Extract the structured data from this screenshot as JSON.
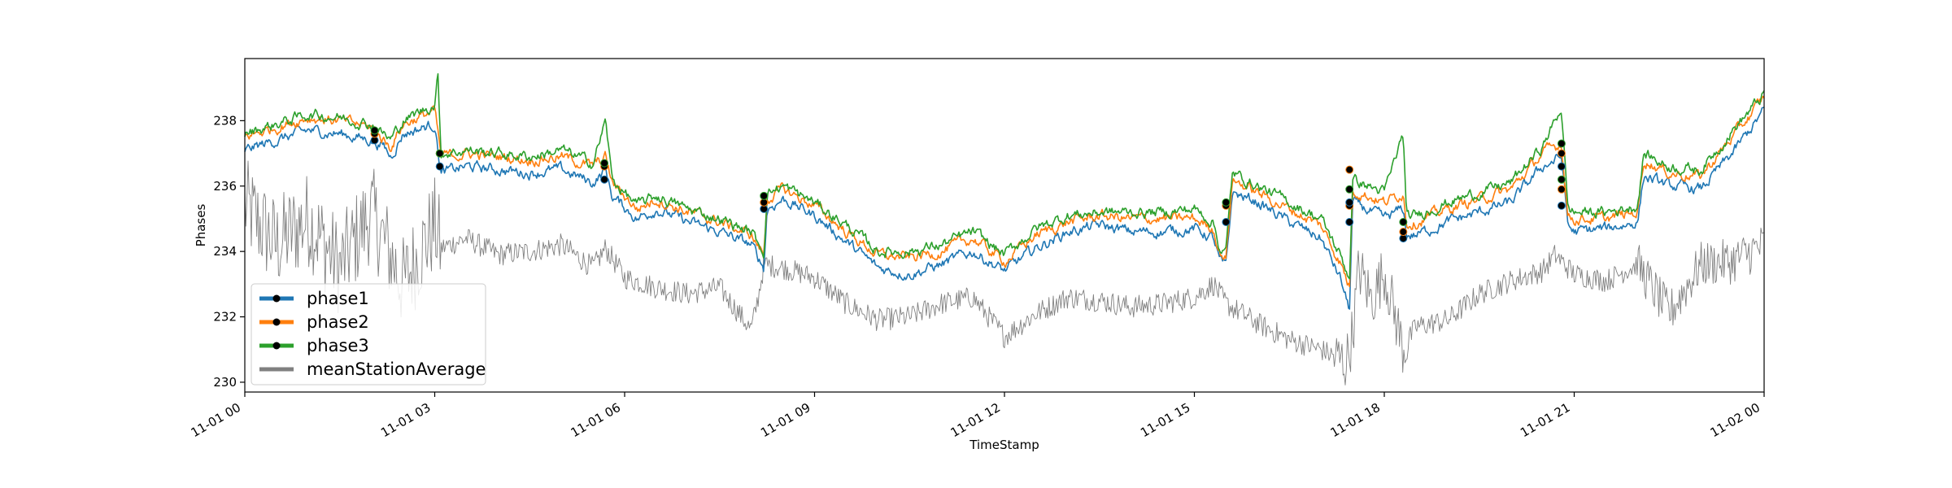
{
  "chart_data": {
    "type": "line",
    "title": "",
    "xlabel": "TimeStamp",
    "ylabel": "Phases",
    "ylim": [
      229.7,
      239.9
    ],
    "xlim_hours": [
      0,
      24
    ],
    "x_ticks": [
      {
        "label": "11-01 00",
        "hour": 0
      },
      {
        "label": "11-01 03",
        "hour": 3
      },
      {
        "label": "11-01 06",
        "hour": 6
      },
      {
        "label": "11-01 09",
        "hour": 9
      },
      {
        "label": "11-01 12",
        "hour": 12
      },
      {
        "label": "11-01 15",
        "hour": 15
      },
      {
        "label": "11-01 18",
        "hour": 18
      },
      {
        "label": "11-01 21",
        "hour": 21
      },
      {
        "label": "11-02 00",
        "hour": 24
      }
    ],
    "y_ticks": [
      230,
      232,
      234,
      236,
      238
    ],
    "grid": false,
    "legend_position": "lower-left",
    "series": [
      {
        "name": "phase1",
        "color": "#1f77b4",
        "points": [
          [
            0,
            237.1
          ],
          [
            0.5,
            237.4
          ],
          [
            1,
            237.7
          ],
          [
            1.5,
            237.6
          ],
          [
            2,
            237.4
          ],
          [
            2.2,
            237.2
          ],
          [
            2.3,
            236.9
          ],
          [
            2.5,
            237.6
          ],
          [
            3,
            237.9
          ],
          [
            3.1,
            236.4
          ],
          [
            3.5,
            236.6
          ],
          [
            4,
            236.5
          ],
          [
            4.5,
            236.4
          ],
          [
            5,
            236.5
          ],
          [
            5.5,
            236.1
          ],
          [
            5.7,
            236.5
          ],
          [
            5.8,
            235.7
          ],
          [
            6.2,
            235.0
          ],
          [
            6.5,
            235.3
          ],
          [
            7,
            234.9
          ],
          [
            7.5,
            234.6
          ],
          [
            8,
            234.2
          ],
          [
            8.2,
            233.5
          ],
          [
            8.25,
            235.3
          ],
          [
            8.5,
            235.6
          ],
          [
            9,
            235.1
          ],
          [
            9.5,
            234.3
          ],
          [
            10,
            233.5
          ],
          [
            10.5,
            233.3
          ],
          [
            11,
            233.6
          ],
          [
            11.5,
            234.0
          ],
          [
            12,
            233.4
          ],
          [
            12.5,
            234.1
          ],
          [
            13,
            234.6
          ],
          [
            13.5,
            234.8
          ],
          [
            14,
            234.6
          ],
          [
            14.5,
            234.6
          ],
          [
            15,
            234.7
          ],
          [
            15.3,
            234.4
          ],
          [
            15.4,
            233.7
          ],
          [
            15.5,
            233.5
          ],
          [
            15.6,
            235.8
          ],
          [
            16,
            235.5
          ],
          [
            16.5,
            234.9
          ],
          [
            17,
            234.4
          ],
          [
            17.3,
            233.2
          ],
          [
            17.45,
            232.2
          ],
          [
            17.5,
            235.5
          ],
          [
            18,
            235.0
          ],
          [
            18.3,
            235.3
          ],
          [
            18.35,
            234.5
          ],
          [
            18.5,
            234.5
          ],
          [
            19,
            234.9
          ],
          [
            19.5,
            235.2
          ],
          [
            20,
            235.5
          ],
          [
            20.5,
            236.6
          ],
          [
            20.8,
            236.9
          ],
          [
            20.9,
            234.8
          ],
          [
            21,
            234.6
          ],
          [
            21.5,
            234.7
          ],
          [
            22,
            234.9
          ],
          [
            22.1,
            236.3
          ],
          [
            22.5,
            236.0
          ],
          [
            23,
            235.9
          ],
          [
            23.5,
            237.0
          ],
          [
            24,
            238.3
          ]
        ]
      },
      {
        "name": "phase2",
        "color": "#ff7f0e",
        "points": [
          [
            0,
            237.5
          ],
          [
            0.5,
            237.8
          ],
          [
            1,
            238.1
          ],
          [
            1.5,
            238.0
          ],
          [
            2,
            237.8
          ],
          [
            2.2,
            237.4
          ],
          [
            2.3,
            237.2
          ],
          [
            2.5,
            237.9
          ],
          [
            3,
            238.3
          ],
          [
            3.1,
            236.9
          ],
          [
            3.5,
            237.0
          ],
          [
            4,
            236.9
          ],
          [
            4.5,
            236.8
          ],
          [
            5,
            236.9
          ],
          [
            5.5,
            236.6
          ],
          [
            5.7,
            236.9
          ],
          [
            5.8,
            236.1
          ],
          [
            6.2,
            235.3
          ],
          [
            6.5,
            235.6
          ],
          [
            7,
            235.2
          ],
          [
            7.5,
            234.9
          ],
          [
            8,
            234.5
          ],
          [
            8.2,
            233.9
          ],
          [
            8.25,
            235.6
          ],
          [
            8.5,
            235.9
          ],
          [
            9,
            235.4
          ],
          [
            9.5,
            234.6
          ],
          [
            10,
            233.9
          ],
          [
            10.5,
            233.8
          ],
          [
            11,
            234.0
          ],
          [
            11.5,
            234.4
          ],
          [
            12,
            233.7
          ],
          [
            12.5,
            234.5
          ],
          [
            13,
            234.9
          ],
          [
            13.5,
            235.1
          ],
          [
            14,
            235.0
          ],
          [
            14.5,
            235.0
          ],
          [
            15,
            235.0
          ],
          [
            15.3,
            234.7
          ],
          [
            15.4,
            234.0
          ],
          [
            15.5,
            233.8
          ],
          [
            15.6,
            236.2
          ],
          [
            16,
            235.8
          ],
          [
            16.5,
            235.3
          ],
          [
            17,
            234.8
          ],
          [
            17.3,
            233.7
          ],
          [
            17.45,
            232.9
          ],
          [
            17.5,
            235.9
          ],
          [
            18,
            235.5
          ],
          [
            18.3,
            235.8
          ],
          [
            18.35,
            234.9
          ],
          [
            18.5,
            234.9
          ],
          [
            19,
            235.3
          ],
          [
            19.5,
            235.6
          ],
          [
            20,
            235.9
          ],
          [
            20.5,
            237.0
          ],
          [
            20.8,
            237.3
          ],
          [
            20.9,
            235.1
          ],
          [
            21,
            235.0
          ],
          [
            21.5,
            235.0
          ],
          [
            22,
            235.2
          ],
          [
            22.1,
            236.8
          ],
          [
            22.5,
            236.4
          ],
          [
            23,
            236.3
          ],
          [
            23.5,
            237.5
          ],
          [
            24,
            238.7
          ]
        ]
      },
      {
        "name": "phase3",
        "color": "#2ca02c",
        "points": [
          [
            0,
            237.6
          ],
          [
            0.5,
            237.9
          ],
          [
            1,
            238.2
          ],
          [
            1.5,
            238.1
          ],
          [
            2,
            237.9
          ],
          [
            2.2,
            237.6
          ],
          [
            2.3,
            237.4
          ],
          [
            2.5,
            238.0
          ],
          [
            3,
            238.5
          ],
          [
            3.05,
            239.4
          ],
          [
            3.1,
            237.0
          ],
          [
            3.5,
            237.1
          ],
          [
            4,
            237.0
          ],
          [
            4.5,
            236.9
          ],
          [
            5,
            237.1
          ],
          [
            5.5,
            236.7
          ],
          [
            5.7,
            238.0
          ],
          [
            5.8,
            236.2
          ],
          [
            6.2,
            235.4
          ],
          [
            6.5,
            235.7
          ],
          [
            7,
            235.3
          ],
          [
            7.5,
            235.0
          ],
          [
            8,
            234.6
          ],
          [
            8.2,
            234.0
          ],
          [
            8.25,
            235.8
          ],
          [
            8.5,
            236.0
          ],
          [
            9,
            235.5
          ],
          [
            9.5,
            234.8
          ],
          [
            10,
            234.0
          ],
          [
            10.5,
            234.0
          ],
          [
            11,
            234.2
          ],
          [
            11.5,
            234.6
          ],
          [
            12,
            233.9
          ],
          [
            12.5,
            234.7
          ],
          [
            13,
            235.1
          ],
          [
            13.5,
            235.2
          ],
          [
            14,
            235.2
          ],
          [
            14.5,
            235.2
          ],
          [
            15,
            235.3
          ],
          [
            15.3,
            234.9
          ],
          [
            15.4,
            234.1
          ],
          [
            15.5,
            234.0
          ],
          [
            15.6,
            236.4
          ],
          [
            16,
            236.0
          ],
          [
            16.5,
            235.5
          ],
          [
            17,
            235.0
          ],
          [
            17.3,
            233.9
          ],
          [
            17.45,
            233.2
          ],
          [
            17.5,
            236.2
          ],
          [
            18,
            235.8
          ],
          [
            18.3,
            237.6
          ],
          [
            18.35,
            235.0
          ],
          [
            18.5,
            235.1
          ],
          [
            19,
            235.5
          ],
          [
            19.5,
            235.8
          ],
          [
            20,
            236.1
          ],
          [
            20.5,
            237.2
          ],
          [
            20.8,
            238.4
          ],
          [
            20.9,
            235.3
          ],
          [
            21,
            235.2
          ],
          [
            21.5,
            235.2
          ],
          [
            22,
            235.4
          ],
          [
            22.1,
            237.0
          ],
          [
            22.5,
            236.6
          ],
          [
            23,
            236.5
          ],
          [
            23.5,
            237.7
          ],
          [
            24,
            238.8
          ]
        ]
      },
      {
        "name": "meanStationAverage",
        "color": "#808080",
        "points": [
          [
            0,
            235.4
          ],
          [
            0.5,
            234.2
          ],
          [
            1,
            235.0
          ],
          [
            1.5,
            233.5
          ],
          [
            2,
            235.2
          ],
          [
            2.5,
            233.0
          ],
          [
            3,
            234.8
          ],
          [
            3.1,
            234.1
          ],
          [
            3.5,
            234.4
          ],
          [
            4,
            233.9
          ],
          [
            4.5,
            234.0
          ],
          [
            5,
            234.2
          ],
          [
            5.5,
            233.5
          ],
          [
            5.7,
            234.1
          ],
          [
            6,
            233.2
          ],
          [
            6.5,
            232.9
          ],
          [
            7,
            232.7
          ],
          [
            7.5,
            232.9
          ],
          [
            8,
            231.6
          ],
          [
            8.1,
            232.5
          ],
          [
            8.2,
            233.6
          ],
          [
            8.5,
            233.5
          ],
          [
            9,
            233.2
          ],
          [
            9.5,
            232.4
          ],
          [
            10,
            231.9
          ],
          [
            10.5,
            232.0
          ],
          [
            11,
            232.4
          ],
          [
            11.5,
            232.6
          ],
          [
            12,
            231.4
          ],
          [
            12.5,
            232.1
          ],
          [
            13,
            232.6
          ],
          [
            13.5,
            232.5
          ],
          [
            14,
            232.3
          ],
          [
            14.5,
            232.4
          ],
          [
            15,
            232.6
          ],
          [
            15.3,
            233.0
          ],
          [
            15.5,
            232.4
          ],
          [
            16,
            231.8
          ],
          [
            16.5,
            231.3
          ],
          [
            17,
            231.0
          ],
          [
            17.4,
            230.6
          ],
          [
            17.5,
            231.5
          ],
          [
            17.6,
            233.5
          ],
          [
            17.8,
            232.5
          ],
          [
            18,
            233.4
          ],
          [
            18.3,
            231.0
          ],
          [
            18.5,
            231.7
          ],
          [
            19,
            231.9
          ],
          [
            19.5,
            232.7
          ],
          [
            20,
            233.1
          ],
          [
            20.5,
            233.4
          ],
          [
            20.7,
            233.9
          ],
          [
            21,
            233.3
          ],
          [
            21.5,
            233.1
          ],
          [
            22,
            233.6
          ],
          [
            22.5,
            232.1
          ],
          [
            23,
            233.6
          ],
          [
            23.5,
            233.7
          ],
          [
            24,
            234.2
          ]
        ]
      }
    ],
    "markers": [
      {
        "hour": 2.05,
        "values": [
          237.4,
          237.6,
          237.7
        ]
      },
      {
        "hour": 3.08,
        "values": [
          236.6,
          237.0,
          237.0
        ]
      },
      {
        "hour": 5.68,
        "values": [
          236.2,
          236.6,
          236.7
        ]
      },
      {
        "hour": 8.2,
        "values": [
          235.3,
          235.5,
          235.7
        ]
      },
      {
        "hour": 15.5,
        "values": [
          234.9,
          235.4,
          235.5
        ]
      },
      {
        "hour": 17.45,
        "values": [
          234.9,
          235.4,
          235.9,
          235.5,
          236.5
        ]
      },
      {
        "hour": 18.3,
        "values": [
          234.4,
          234.6,
          234.9
        ]
      },
      {
        "hour": 20.8,
        "values": [
          235.4,
          235.9,
          236.2,
          236.6,
          237.0,
          237.3
        ]
      }
    ]
  }
}
